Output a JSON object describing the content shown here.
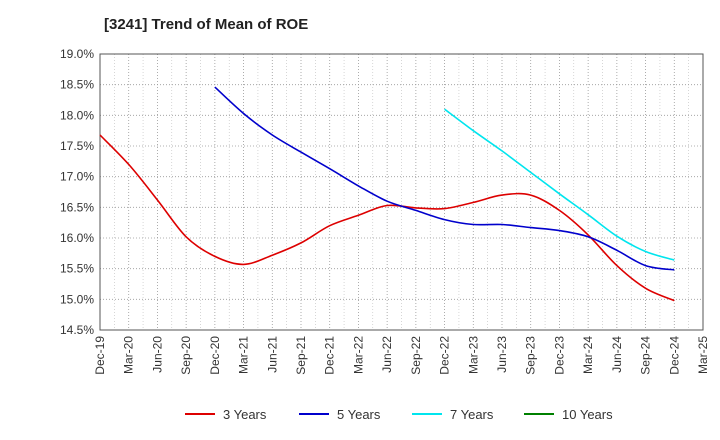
{
  "chart_data": {
    "type": "line",
    "title": "[3241]  Trend of Mean of ROE",
    "xlabel": "",
    "ylabel": "",
    "ylim": [
      14.5,
      19.0
    ],
    "y_ticks": [
      "19.0%",
      "18.5%",
      "18.0%",
      "17.5%",
      "17.0%",
      "16.5%",
      "16.0%",
      "15.5%",
      "15.0%",
      "14.5%"
    ],
    "y_tick_values": [
      19.0,
      18.5,
      18.0,
      17.5,
      17.0,
      16.5,
      16.0,
      15.5,
      15.0,
      14.5
    ],
    "x_ticks": [
      "Dec-19",
      "Mar-20",
      "Jun-20",
      "Sep-20",
      "Dec-20",
      "Mar-21",
      "Jun-21",
      "Sep-21",
      "Dec-21",
      "Mar-22",
      "Jun-22",
      "Sep-22",
      "Dec-22",
      "Mar-23",
      "Jun-23",
      "Sep-23",
      "Dec-23",
      "Mar-24",
      "Jun-24",
      "Sep-24",
      "Dec-24",
      "Mar-25"
    ],
    "grid": true,
    "legend_position": "bottom",
    "series": [
      {
        "name": "3 Years",
        "color": "#dd0000",
        "start_index": 0,
        "values": [
          17.68,
          17.2,
          16.62,
          16.02,
          15.7,
          15.57,
          15.72,
          15.92,
          16.2,
          16.37,
          16.53,
          16.49,
          16.48,
          16.58,
          16.7,
          16.7,
          16.45,
          16.05,
          15.55,
          15.18,
          14.98
        ]
      },
      {
        "name": "5 Years",
        "color": "#0000cc",
        "start_index": 4,
        "values": [
          18.46,
          18.03,
          17.68,
          17.4,
          17.13,
          16.85,
          16.6,
          16.45,
          16.3,
          16.22,
          16.22,
          16.17,
          16.12,
          16.02,
          15.8,
          15.55,
          15.48
        ]
      },
      {
        "name": "7 Years",
        "color": "#00e5ee",
        "start_index": 12,
        "values": [
          18.1,
          17.75,
          17.42,
          17.07,
          16.72,
          16.38,
          16.03,
          15.78,
          15.64
        ]
      },
      {
        "name": "10 Years",
        "color": "#008000",
        "start_index": 0,
        "values": []
      }
    ]
  }
}
